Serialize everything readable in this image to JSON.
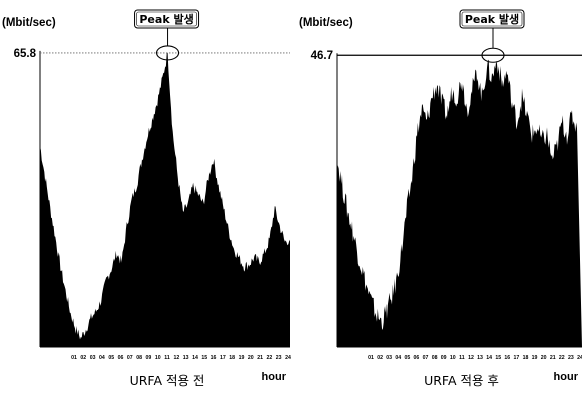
{
  "chart_data": [
    {
      "type": "area",
      "title": "URFA 적용 전",
      "ylabel": "(Mbit/sec)",
      "xlabel": "hour",
      "peak_label": "65.8",
      "peak_value": 65.8,
      "annotation": "Peak 발생",
      "annotation_hour": 12.5,
      "ylim": [
        0,
        65.8
      ],
      "xlim": [
        0,
        24.5
      ],
      "x_ticks": [
        "01",
        "02",
        "03",
        "04",
        "05",
        "06",
        "07",
        "08",
        "09",
        "10",
        "11",
        "12",
        "13",
        "14",
        "15",
        "16",
        "17",
        "18",
        "19",
        "20",
        "21",
        "22",
        "23",
        "24"
      ],
      "fill_color": "#000000",
      "series": [
        {
          "x": [
            0.0,
            0.5,
            1.0,
            1.5,
            2.0,
            2.5,
            3.0,
            3.5,
            4.0,
            4.5,
            5.0,
            5.5,
            6.0,
            6.5,
            7.0,
            7.5,
            8.0,
            8.5,
            9.0,
            9.5,
            10.0,
            10.5,
            11.0,
            11.5,
            12.0,
            12.5,
            13.0,
            13.5,
            14.0,
            14.5,
            15.0,
            15.5,
            16.0,
            16.5,
            17.0,
            17.5,
            18.0,
            18.5,
            19.0,
            19.5,
            20.0,
            20.5,
            21.0,
            21.5,
            22.0,
            22.5,
            23.0,
            23.5,
            24.0,
            24.5
          ],
          "values": [
            45.0,
            38.0,
            31.0,
            24.5,
            18.0,
            12.5,
            7.5,
            4.0,
            2.0,
            4.0,
            6.5,
            8.0,
            10.5,
            15.0,
            17.5,
            21.0,
            19.0,
            27.0,
            33.0,
            36.5,
            42.0,
            47.0,
            51.0,
            55.0,
            60.0,
            65.8,
            48.0,
            38.0,
            30.0,
            32.0,
            36.0,
            34.0,
            32.0,
            38.0,
            42.0,
            36.0,
            31.0,
            26.0,
            22.0,
            20.0,
            18.0,
            18.5,
            20.0,
            19.0,
            21.0,
            24.0,
            31.0,
            27.0,
            23.5,
            24.0
          ]
        }
      ]
    },
    {
      "type": "area",
      "title": "URFA 적용 후",
      "ylabel": "(Mbit/sec)",
      "xlabel": "hour",
      "peak_label": "46.7",
      "peak_value": 46.7,
      "annotation": "Peak 발생",
      "annotation_hour": 15.6,
      "ylim": [
        0,
        46.7
      ],
      "xlim": [
        0,
        24.5
      ],
      "x_ticks": [
        "01",
        "02",
        "03",
        "04",
        "05",
        "06",
        "07",
        "08",
        "09",
        "10",
        "11",
        "12",
        "13",
        "14",
        "15",
        "16",
        "17",
        "18",
        "19",
        "20",
        "21",
        "22",
        "23",
        "24"
      ],
      "fill_color": "#000000",
      "series": [
        {
          "x": [
            0.0,
            0.5,
            1.0,
            1.5,
            2.0,
            2.5,
            3.0,
            3.5,
            4.0,
            4.5,
            5.0,
            5.5,
            6.0,
            6.5,
            7.0,
            7.5,
            8.0,
            8.5,
            9.0,
            9.5,
            10.0,
            10.5,
            11.0,
            11.5,
            12.0,
            12.5,
            13.0,
            13.5,
            14.0,
            14.5,
            15.0,
            15.5,
            16.0,
            16.5,
            17.0,
            17.5,
            18.0,
            18.5,
            19.0,
            19.5,
            20.0,
            20.5,
            21.0,
            21.5,
            22.0,
            22.5,
            23.0,
            23.5,
            24.0
          ],
          "values": [
            30.0,
            26.0,
            22.0,
            19.0,
            15.5,
            12.5,
            9.5,
            7.0,
            5.0,
            4.0,
            6.0,
            8.0,
            11.0,
            16.0,
            22.0,
            27.0,
            34.0,
            38.0,
            36.0,
            40.0,
            42.0,
            39.0,
            37.0,
            41.0,
            40.0,
            43.0,
            38.0,
            41.0,
            44.0,
            40.0,
            45.0,
            43.0,
            46.0,
            42.0,
            44.0,
            39.0,
            36.0,
            40.0,
            37.0,
            34.0,
            35.0,
            33.0,
            34.0,
            30.0,
            32.0,
            36.0,
            34.0,
            37.0,
            35.0
          ]
        }
      ]
    }
  ]
}
